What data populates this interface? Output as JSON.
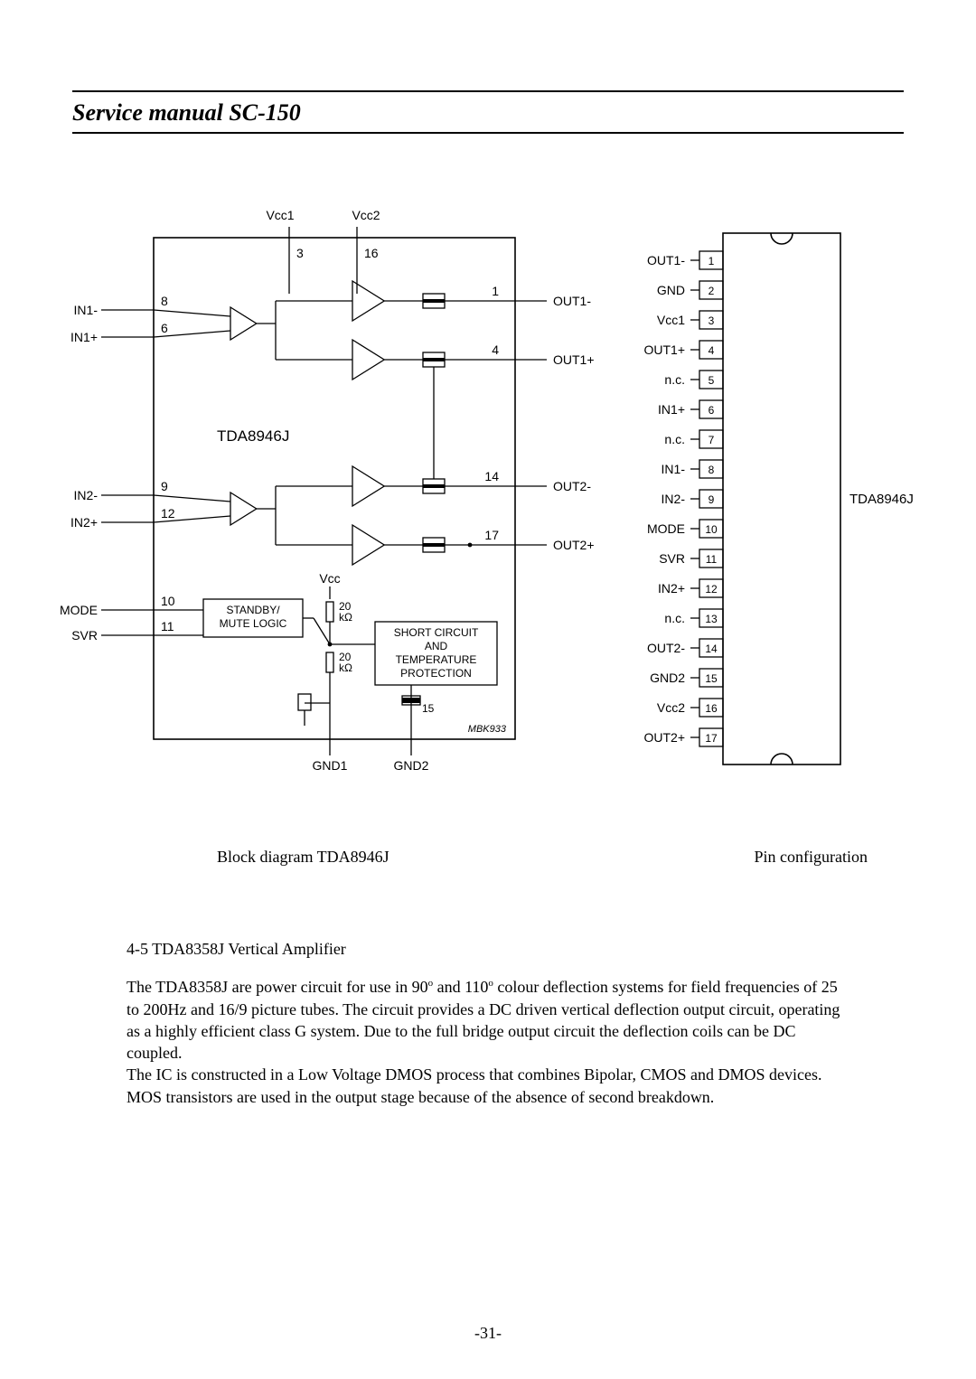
{
  "header": {
    "title": "Service manual SC-150"
  },
  "page_number": "-31-",
  "captions": {
    "block_diagram": "Block diagram TDA8946J",
    "pin_config": "Pin configuration"
  },
  "block_diagram": {
    "chip_name": "TDA8946J",
    "top_labels": {
      "vcc1": "Vcc1",
      "vcc2": "Vcc2"
    },
    "top_pins": {
      "p3": "3",
      "p16": "16"
    },
    "left_inputs": {
      "in1_minus": {
        "label": "IN1-",
        "pin": "8"
      },
      "in1_plus": {
        "label": "IN1+",
        "pin": "6"
      },
      "in2_minus": {
        "label": "IN2-",
        "pin": "9"
      },
      "in2_plus": {
        "label": "IN2+",
        "pin": "12"
      },
      "mode": {
        "label": "MODE",
        "pin": "10"
      },
      "svr": {
        "label": "SVR",
        "pin": "11"
      }
    },
    "right_outputs": {
      "out1_minus": {
        "label": "OUT1-",
        "pin": "1"
      },
      "out1_plus": {
        "label": "OUT1+",
        "pin": "4"
      },
      "out2_minus": {
        "label": "OUT2-",
        "pin": "14"
      },
      "out2_plus": {
        "label": "OUT2+",
        "pin": "17"
      }
    },
    "blocks": {
      "standby": "STANDBY/\nMUTE LOGIC",
      "protection": "SHORT CIRCUIT\nAND\nTEMPERATURE\nPROTECTION"
    },
    "resistors": {
      "r_top": "20\nkΩ",
      "r_bot": "20\nkΩ"
    },
    "vcc_internal": "Vcc",
    "gnd1": "GND1",
    "gnd2": "GND2",
    "gnd2_pin": "15",
    "ref": "MBK933"
  },
  "pin_config": {
    "chip_name": "TDA8946J",
    "pins": [
      {
        "n": "1",
        "label": "OUT1-"
      },
      {
        "n": "2",
        "label": "GND"
      },
      {
        "n": "3",
        "label": "Vcc1"
      },
      {
        "n": "4",
        "label": "OUT1+"
      },
      {
        "n": "5",
        "label": "n.c."
      },
      {
        "n": "6",
        "label": "IN1+"
      },
      {
        "n": "7",
        "label": "n.c."
      },
      {
        "n": "8",
        "label": "IN1-"
      },
      {
        "n": "9",
        "label": "IN2-"
      },
      {
        "n": "10",
        "label": "MODE"
      },
      {
        "n": "11",
        "label": "SVR"
      },
      {
        "n": "12",
        "label": "IN2+"
      },
      {
        "n": "13",
        "label": "n.c."
      },
      {
        "n": "14",
        "label": "OUT2-"
      },
      {
        "n": "15",
        "label": "GND2"
      },
      {
        "n": "16",
        "label": "Vcc2"
      },
      {
        "n": "17",
        "label": "OUT2+"
      }
    ]
  },
  "body": {
    "section_title": "4-5 TDA8358J Vertical Amplifier",
    "para1_a": "The TDA8358J are power circuit for use in 90",
    "para1_b": " and 110",
    "para1_c": " colour deflection systems for field frequencies of  25 to 200Hz and 16/9 picture tubes. The circuit provides a DC driven vertical deflection output circuit, operating as a highly efficient class G system. Due to the full bridge output circuit the deflection coils can be DC coupled.",
    "para2": "The IC is constructed in a Low Voltage DMOS process that combines Bipolar, CMOS and DMOS devices. MOS transistors are used in the output stage because of the absence of second breakdown."
  },
  "style": {
    "font_family_text": "Times New Roman",
    "font_family_diagram": "Arial, Helvetica, sans-serif",
    "text_color": "#000000",
    "bg_color": "#ffffff",
    "line_color": "#000000",
    "line_width": 1.3,
    "block_line_width": 1.6,
    "font_size_header": 26,
    "font_size_body": 18,
    "font_size_diagram": 14,
    "font_size_diagram_small": 12
  }
}
